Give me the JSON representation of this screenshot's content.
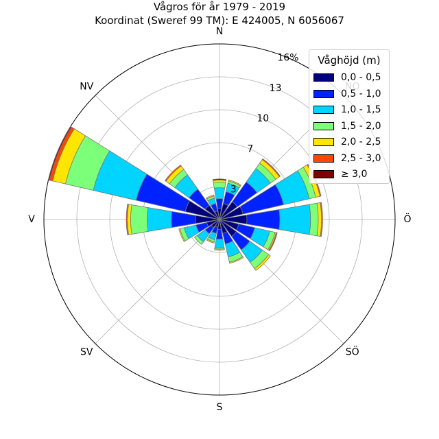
{
  "chart_data": {
    "type": "windrose",
    "title": "Vågros för år 1979 - 2019",
    "subtitle": "Koordinat (Sweref 99 TM): E 424005, N 6056067",
    "direction_labels": [
      "N",
      "NO",
      "Ö",
      "SÖ",
      "S",
      "SV",
      "V",
      "NV"
    ],
    "radial_ticks": [
      3,
      7,
      10,
      13,
      16
    ],
    "radial_tick_labels": [
      "3",
      "7",
      "10",
      "13",
      "16%"
    ],
    "rmax": 16,
    "grid": true,
    "legend_position": "top-right",
    "legend_title": "Våghöjd (m)",
    "bins": [
      {
        "label": "0,0 - 0,5",
        "color": "#00007f"
      },
      {
        "label": "0,5 - 1,0",
        "color": "#0022ff"
      },
      {
        "label": "1,0 - 1,5",
        "color": "#00d4ff"
      },
      {
        "label": "1,5 - 2,0",
        "color": "#7cff79"
      },
      {
        "label": "2,0 - 2,5",
        "color": "#ffe600"
      },
      {
        "label": "2,5 - 3,0",
        "color": "#ff4600"
      },
      {
        "label": "≥ 3,0",
        "color": "#7f0000"
      }
    ],
    "directions_deg": [
      0,
      22.5,
      45,
      67.5,
      90,
      112.5,
      135,
      157.5,
      180,
      202.5,
      225,
      247.5,
      270,
      292.5,
      315,
      337.5
    ],
    "cumulative_percent": [
      [
        1.0,
        1.9,
        2.9,
        3.4,
        3.6,
        3.6,
        3.7
      ],
      [
        1.5,
        2.6,
        3.4,
        3.6,
        3.7,
        3.7,
        3.7
      ],
      [
        2.0,
        4.2,
        5.7,
        6.3,
        6.7,
        6.8,
        6.8
      ],
      [
        2.2,
        6.0,
        8.4,
        9.0,
        9.4,
        9.5,
        9.5
      ],
      [
        2.5,
        5.5,
        8.3,
        9.0,
        9.3,
        9.4,
        9.4
      ],
      [
        1.8,
        3.3,
        4.7,
        5.2,
        5.3,
        5.4,
        5.4
      ],
      [
        1.9,
        3.4,
        4.8,
        5.5,
        5.7,
        5.7,
        5.7
      ],
      [
        1.3,
        2.3,
        3.5,
        4.0,
        4.1,
        4.1,
        4.1
      ],
      [
        0.9,
        1.8,
        2.6,
        2.7,
        2.8,
        2.8,
        2.8
      ],
      [
        0.7,
        1.3,
        1.9,
        2.1,
        2.2,
        2.2,
        2.2
      ],
      [
        0.9,
        1.6,
        2.5,
        2.8,
        2.8,
        2.8,
        2.8
      ],
      [
        1.2,
        2.2,
        3.3,
        3.7,
        3.8,
        3.8,
        3.8
      ],
      [
        2.2,
        4.4,
        6.6,
        8.1,
        8.4,
        8.5,
        8.5
      ],
      [
        3.2,
        7.8,
        11.8,
        14.4,
        15.6,
        15.9,
        16.0
      ],
      [
        1.6,
        3.4,
        5.0,
        5.6,
        6.0,
        6.1,
        6.1
      ],
      [
        0.8,
        1.5,
        2.0,
        2.2,
        2.3,
        2.3,
        2.3
      ]
    ]
  }
}
